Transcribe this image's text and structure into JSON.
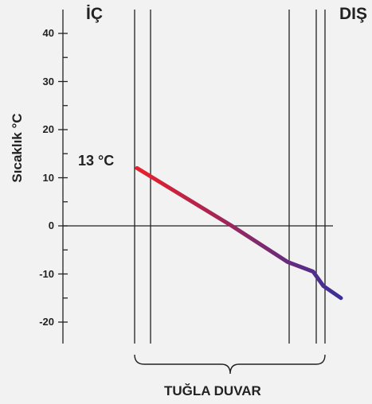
{
  "labels": {
    "inside": "İÇ",
    "outside": "DIŞ",
    "inner_surface_temp": "13 °C",
    "y_axis": "Sıcaklık °C",
    "wall": "TUĞLA DUVAR"
  },
  "colors": {
    "gradient_start": "#e8202a",
    "gradient_end": "#3a2f9a",
    "lines": "#222222",
    "background": "#f2f2f2"
  },
  "chart_data": {
    "type": "line",
    "ylabel": "Sıcaklık °C",
    "ylim": [
      -25,
      43
    ],
    "yticks": [
      -20,
      -10,
      0,
      10,
      20,
      30,
      40
    ],
    "series": [
      {
        "points": [
          {
            "y": 12
          },
          {
            "y": 0
          },
          {
            "y": -7.5
          },
          {
            "y": -9.5
          },
          {
            "y": -12.5
          },
          {
            "y": -15
          }
        ]
      }
    ]
  }
}
